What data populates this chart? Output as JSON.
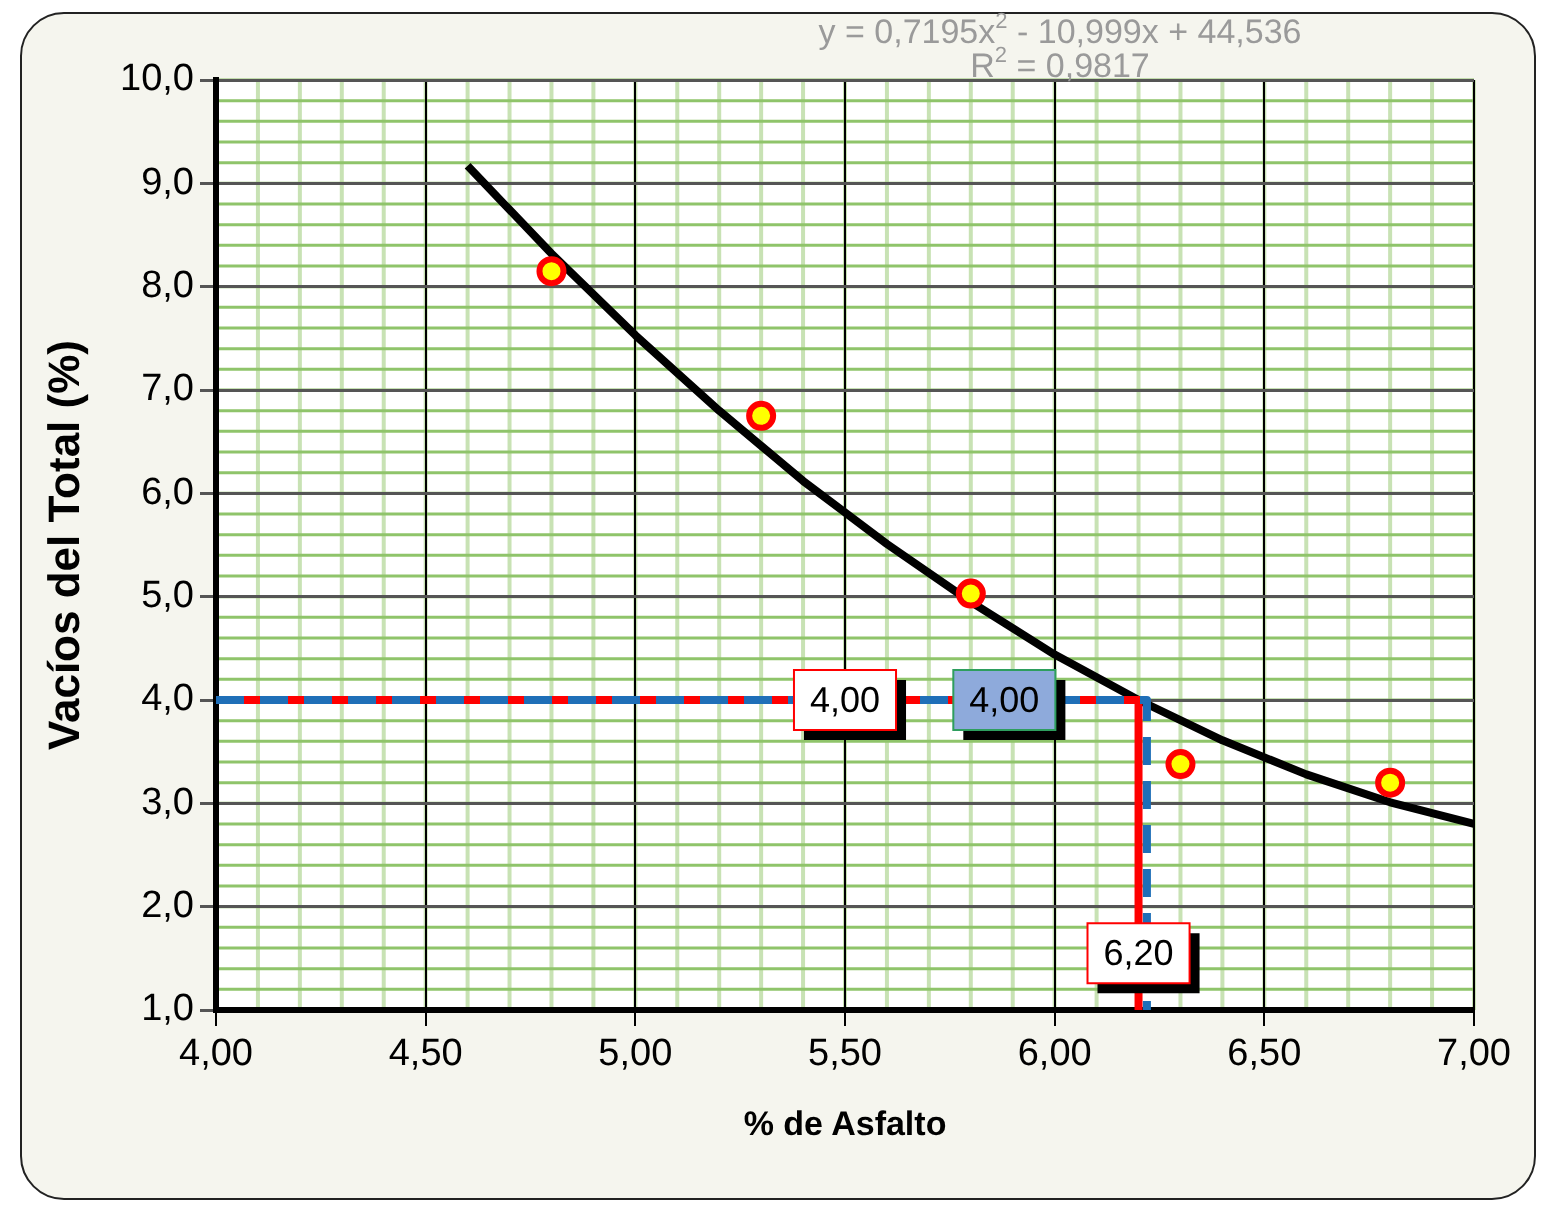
{
  "chart_data": {
    "type": "scatter",
    "xlabel": "% de Asfalto",
    "ylabel": "Vacíos del Total (%)",
    "xlim": [
      4,
      7
    ],
    "xticks": [
      {
        "value": 4,
        "label": "4,00"
      },
      {
        "value": 4.5,
        "label": "4,50"
      },
      {
        "value": 5,
        "label": "5,00"
      },
      {
        "value": 5.5,
        "label": "5,50"
      },
      {
        "value": 6,
        "label": "6,00"
      },
      {
        "value": 6.5,
        "label": "6,50"
      },
      {
        "value": 7,
        "label": "7,00"
      }
    ],
    "ylim": [
      1,
      10
    ],
    "yticks": [
      {
        "value": 1,
        "label": "1,0"
      },
      {
        "value": 2,
        "label": "2,0"
      },
      {
        "value": 3,
        "label": "3,0"
      },
      {
        "value": 4,
        "label": "4,0"
      },
      {
        "value": 5,
        "label": "5,0"
      },
      {
        "value": 6,
        "label": "6,0"
      },
      {
        "value": 7,
        "label": "7,0"
      },
      {
        "value": 8,
        "label": "8,0"
      },
      {
        "value": 9,
        "label": "9,0"
      },
      {
        "value": 10,
        "label": "10,0"
      }
    ],
    "grid": true,
    "legend": false,
    "series": [
      {
        "type": "line",
        "color": "#000000",
        "marker": "none",
        "line_style": "solid",
        "x": [
          4.6,
          4.8,
          5.0,
          5.2,
          5.4,
          5.6,
          5.8,
          6.0,
          6.2,
          6.4,
          6.6,
          6.8,
          7.0
        ],
        "values": [
          9.17,
          8.32,
          7.53,
          6.8,
          6.12,
          5.51,
          4.95,
          4.44,
          4.0,
          3.61,
          3.28,
          3.01,
          2.8
        ]
      },
      {
        "type": "line",
        "color": "#ff0000",
        "marker": "none",
        "line_style": "solid",
        "x": [
          4,
          6.2,
          6.2
        ],
        "values": [
          4,
          4,
          1
        ]
      },
      {
        "type": "line",
        "color": "#1f6fb8",
        "marker": "none",
        "line_style": "dashed",
        "x": [
          4,
          6.22,
          6.22
        ],
        "values": [
          4,
          4,
          1
        ]
      },
      {
        "type": "scatter",
        "color": "#ffff00",
        "marker": "circle",
        "x": [
          4.8,
          5.3,
          5.8,
          6.3,
          6.8
        ],
        "values": [
          8.15,
          6.75,
          5.03,
          3.38,
          3.2
        ]
      }
    ],
    "annotations": [
      "y = 0,7195x$^{2}$ - 10,999x + 44,536",
      "R$^{2}$ = 0,9817",
      {
        "text": "4,00",
        "x": 5.5,
        "y": 4
      },
      {
        "text": "4,00",
        "x": 5.88,
        "y": 4
      },
      {
        "text": "6,20",
        "x": 6.2,
        "y": 1.55
      }
    ]
  }
}
